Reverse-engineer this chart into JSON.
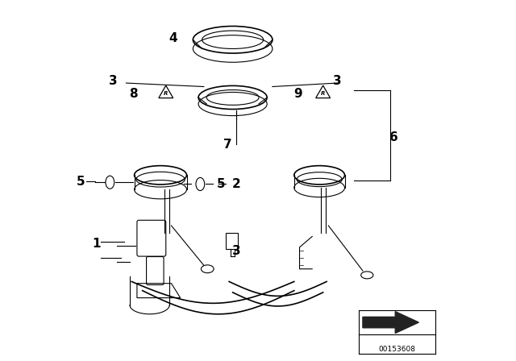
{
  "bg_color": "#ffffff",
  "line_color": "#000000",
  "part_label_color": "#000000",
  "part_label_fontsize": 11,
  "watermark_text": "00153608"
}
